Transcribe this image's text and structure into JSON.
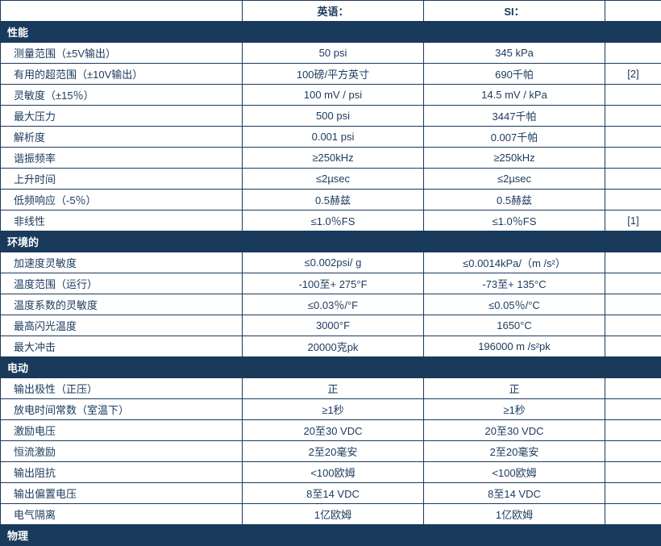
{
  "headers": {
    "col1": "",
    "col2": "英语：",
    "col3": "SI：",
    "col4": ""
  },
  "sections": [
    {
      "title": "性能",
      "rows": [
        {
          "label": "测量范围（±5V输出）",
          "en": "50 psi",
          "si": "345 kPa",
          "note": ""
        },
        {
          "label": "有用的超范围（±10V输出）",
          "en": "100磅/平方英寸",
          "si": "690千帕",
          "note": "[2]"
        },
        {
          "label": "灵敏度（±15％）",
          "en": "100 mV / psi",
          "si": "14.5 mV / kPa",
          "note": ""
        },
        {
          "label": "最大压力",
          "en": "500 psi",
          "si": "3447千帕",
          "note": ""
        },
        {
          "label": "解析度",
          "en": "0.001 psi",
          "si": "0.007千帕",
          "note": ""
        },
        {
          "label": "谐振频率",
          "en": "≥250kHz",
          "si": "≥250kHz",
          "note": ""
        },
        {
          "label": "上升时间",
          "en": "≤2µsec",
          "si": "≤2µsec",
          "note": ""
        },
        {
          "label": "低频响应（-5％）",
          "en": "0.5赫兹",
          "si": "0.5赫兹",
          "note": ""
        },
        {
          "label": "非线性",
          "en": "≤1.0％FS",
          "si": "≤1.0％FS",
          "note": "[1]"
        }
      ]
    },
    {
      "title": "环境的",
      "rows": [
        {
          "label": "加速度灵敏度",
          "en": "≤0.002psi/ g",
          "si": "≤0.0014kPa/（m /s²）",
          "note": ""
        },
        {
          "label": "温度范围（运行）",
          "en": "-100至+ 275°F",
          "si": "-73至+ 135°C",
          "note": ""
        },
        {
          "label": "温度系数的灵敏度",
          "en": "≤0.03％/°F",
          "si": "≤0.05％/°C",
          "note": ""
        },
        {
          "label": "最高闪光温度",
          "en": "3000°F",
          "si": "1650°C",
          "note": ""
        },
        {
          "label": "最大冲击",
          "en": "20000克pk",
          "si": "196000 m /s²pk",
          "note": ""
        }
      ]
    },
    {
      "title": "电动",
      "rows": [
        {
          "label": "输出极性（正压）",
          "en": "正",
          "si": "正",
          "note": ""
        },
        {
          "label": "放电时间常数（室温下）",
          "en": "≥1秒",
          "si": "≥1秒",
          "note": ""
        },
        {
          "label": "激励电压",
          "en": "20至30 VDC",
          "si": "20至30 VDC",
          "note": ""
        },
        {
          "label": "恒流激励",
          "en": "2至20毫安",
          "si": "2至20毫安",
          "note": ""
        },
        {
          "label": "输出阻抗",
          "en": "<100欧姆",
          "si": "<100欧姆",
          "note": ""
        },
        {
          "label": "输出偏置电压",
          "en": "8至14 VDC",
          "si": "8至14 VDC",
          "note": ""
        },
        {
          "label": "电气隔离",
          "en": "1亿欧姆",
          "si": "1亿欧姆",
          "note": ""
        }
      ]
    },
    {
      "title": "物理",
      "rows": []
    }
  ]
}
